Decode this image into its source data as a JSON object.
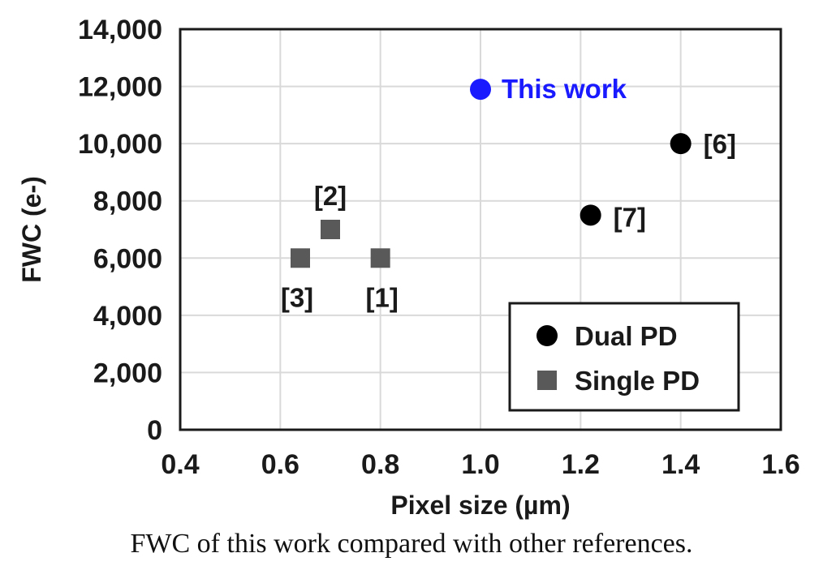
{
  "chart_data": {
    "type": "scatter",
    "xlabel": "Pixel size (µm)",
    "ylabel": "FWC (e-)",
    "xlim": [
      0.4,
      1.6
    ],
    "ylim": [
      0,
      14000
    ],
    "x_ticks": [
      "0.4",
      "0.6",
      "0.8",
      "1.0",
      "1.2",
      "1.4",
      "1.6"
    ],
    "y_ticks": [
      "0",
      "2,000",
      "4,000",
      "6,000",
      "8,000",
      "10,000",
      "12,000",
      "14,000"
    ],
    "grid": true,
    "legend_position": "bottom-right",
    "series": [
      {
        "name": "Dual PD",
        "marker": "circle",
        "color": "#000000",
        "points": [
          {
            "x": 1.22,
            "y": 7500,
            "label": "[7]"
          },
          {
            "x": 1.4,
            "y": 10000,
            "label": "[6]"
          }
        ]
      },
      {
        "name": "Single PD",
        "marker": "square",
        "color": "#595959",
        "points": [
          {
            "x": 0.64,
            "y": 6000,
            "label": "[3]"
          },
          {
            "x": 0.7,
            "y": 7000,
            "label": "[2]"
          },
          {
            "x": 0.8,
            "y": 6000,
            "label": "[1]"
          }
        ]
      }
    ],
    "highlight": {
      "marker": "circle",
      "color": "#1a1aff",
      "x": 1.0,
      "y": 11900,
      "label": "This work"
    }
  },
  "caption": "FWC of this work compared with other references."
}
